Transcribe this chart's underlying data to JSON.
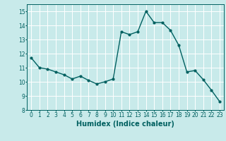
{
  "x": [
    0,
    1,
    2,
    3,
    4,
    5,
    6,
    7,
    8,
    9,
    10,
    11,
    12,
    13,
    14,
    15,
    16,
    17,
    18,
    19,
    20,
    21,
    22,
    23
  ],
  "y": [
    11.7,
    11.0,
    10.9,
    10.7,
    10.5,
    10.2,
    10.4,
    10.1,
    9.85,
    10.0,
    10.2,
    13.55,
    13.35,
    13.55,
    15.0,
    14.2,
    14.2,
    13.65,
    12.6,
    10.7,
    10.8,
    10.15,
    9.4,
    8.6
  ],
  "line_color": "#006060",
  "marker": "o",
  "markersize": 2.0,
  "linewidth": 1.0,
  "bg_color": "#c8eaea",
  "grid_color": "#ffffff",
  "tick_color": "#006060",
  "label_color": "#006060",
  "xlabel": "Humidex (Indice chaleur)",
  "xlim": [
    -0.5,
    23.5
  ],
  "ylim": [
    8,
    15.5
  ],
  "yticks": [
    8,
    9,
    10,
    11,
    12,
    13,
    14,
    15
  ],
  "xticks": [
    0,
    1,
    2,
    3,
    4,
    5,
    6,
    7,
    8,
    9,
    10,
    11,
    12,
    13,
    14,
    15,
    16,
    17,
    18,
    19,
    20,
    21,
    22,
    23
  ],
  "xlabel_fontsize": 7.0,
  "tick_fontsize": 5.5
}
